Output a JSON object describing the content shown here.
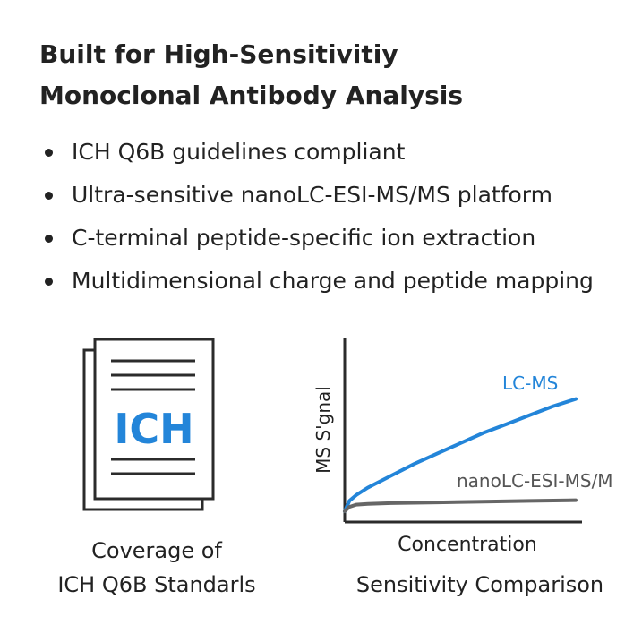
{
  "title": {
    "line1": "Built for High-Sensitivitiy",
    "line2": "Monoclonal Antibody Analysis"
  },
  "bullets": [
    "ICH Q6B guidelines compliant",
    "Ultra-sensitive nanoLC-ESI-MS/MS platform",
    "C-terminal peptide-specific ion extraction",
    "Multidimensional charge and peptide mapping"
  ],
  "ich_icon": {
    "label": "ICH",
    "caption_line1": "Coverage of",
    "caption_line2": "ICH Q6B Standarls"
  },
  "chart_caption": "Sensitivity Comparison",
  "chart_data": {
    "type": "line",
    "title": "",
    "xlabel": "Concentration",
    "ylabel": "MS S'gnal",
    "grid": false,
    "xlim": [
      0,
      1
    ],
    "ylim": [
      0,
      1
    ],
    "series": [
      {
        "name": "LC-MS",
        "color": "#2385d9",
        "x": [
          0,
          0.02,
          0.05,
          0.1,
          0.2,
          0.3,
          0.4,
          0.5,
          0.6,
          0.7,
          0.8,
          0.9,
          1.0
        ],
        "y": [
          0,
          0.07,
          0.11,
          0.16,
          0.24,
          0.32,
          0.39,
          0.46,
          0.53,
          0.59,
          0.65,
          0.71,
          0.76
        ]
      },
      {
        "name": "nanoLC-ESI-MS/M",
        "color": "#666666",
        "x": [
          0,
          0.02,
          0.05,
          0.1,
          0.2,
          0.4,
          0.6,
          0.8,
          1.0
        ],
        "y": [
          0,
          0.03,
          0.045,
          0.05,
          0.055,
          0.06,
          0.065,
          0.07,
          0.075
        ]
      }
    ]
  }
}
